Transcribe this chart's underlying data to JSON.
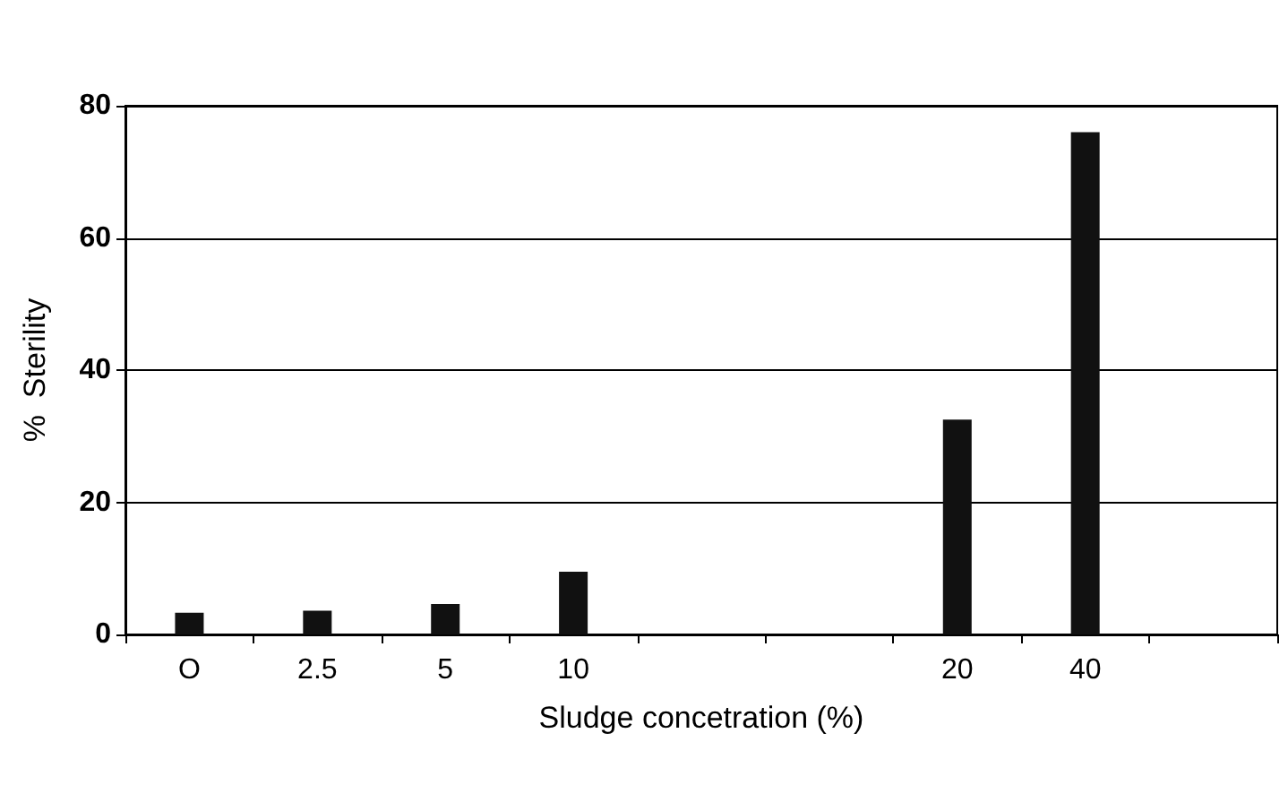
{
  "chart_data": {
    "type": "bar",
    "xlabel": "Sludge concetration (%)",
    "ylabel": "%  Sterility",
    "categories": [
      "O",
      "2.5",
      "5",
      "10",
      null,
      null,
      "20",
      "40",
      null
    ],
    "values": [
      3.3,
      3.6,
      4.6,
      9.5,
      null,
      null,
      32.5,
      76,
      null
    ],
    "color": "#111111",
    "ylim": [
      0,
      80
    ],
    "yticks": [
      0,
      20,
      40,
      60,
      80
    ],
    "grid": "y"
  }
}
